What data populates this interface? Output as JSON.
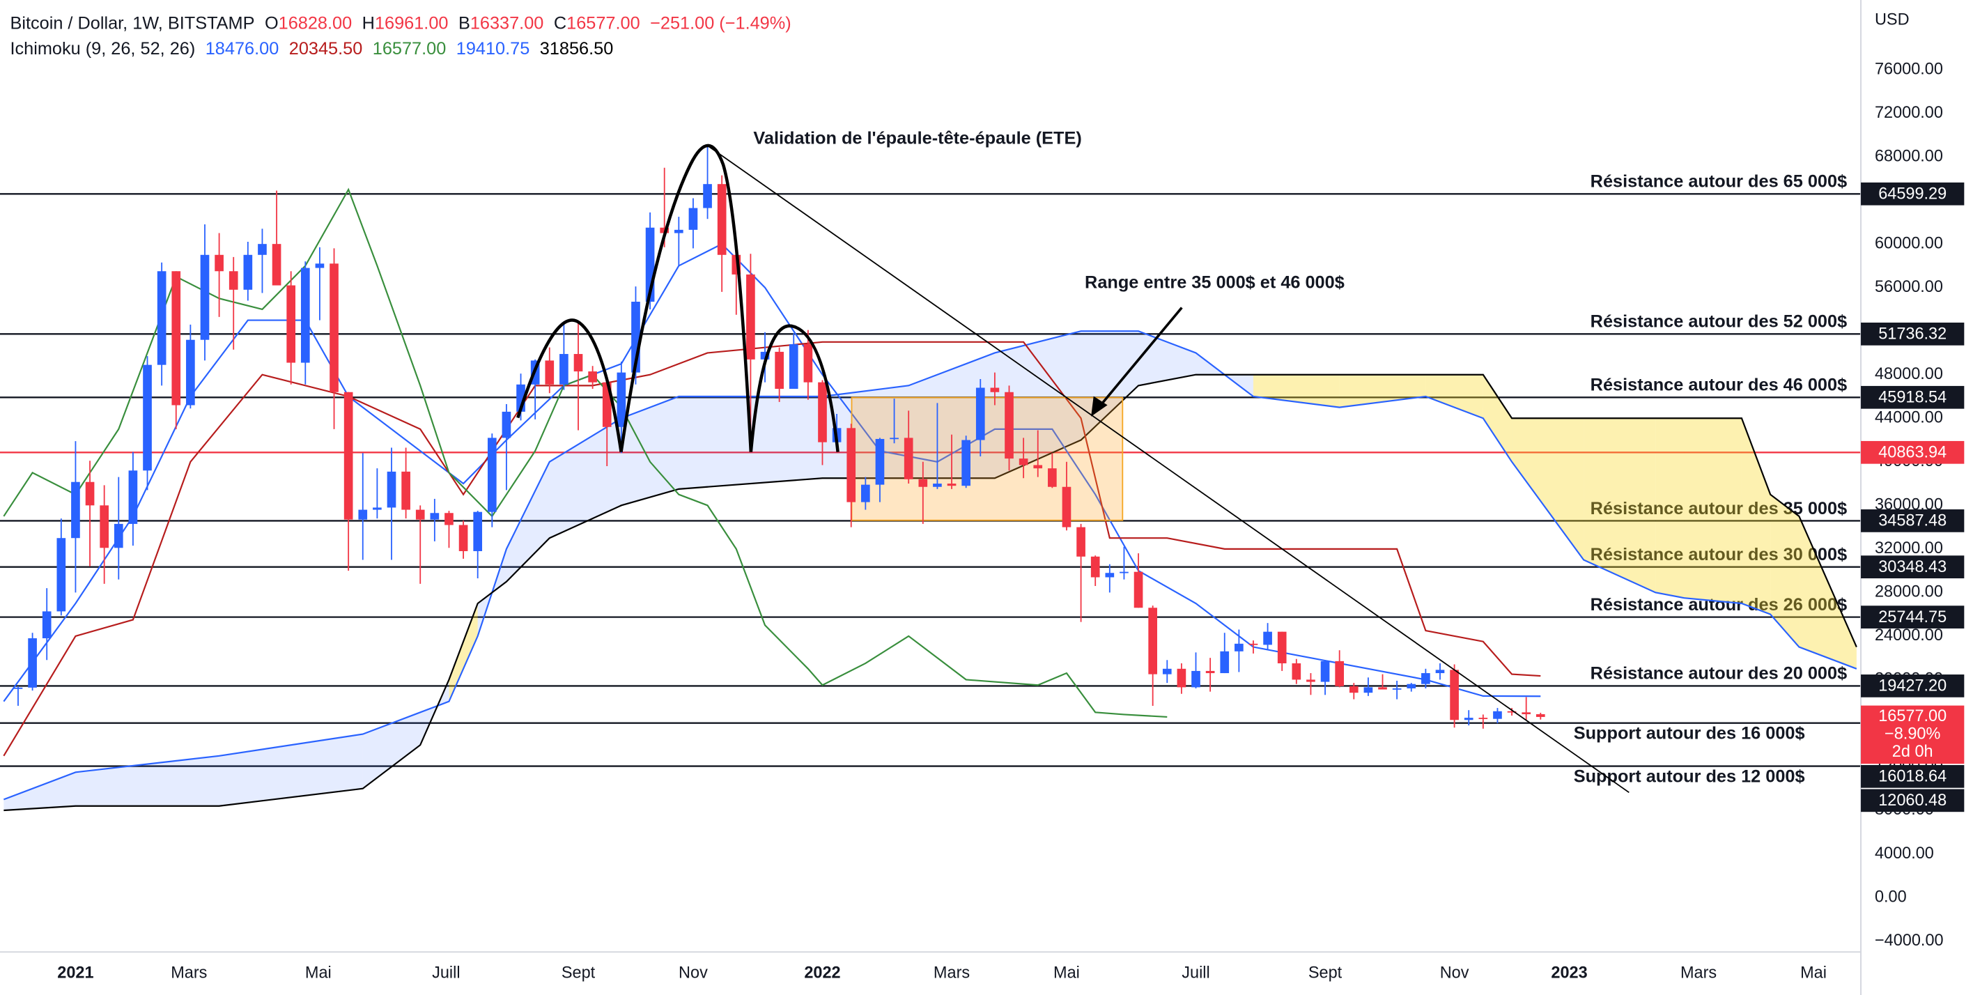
{
  "chart_data": {
    "type": "candlestick",
    "header": {
      "symbol": "Bitcoin / Dollar, 1W, BITSTAMP",
      "ohlc": [
        {
          "key": "O",
          "text": "16828.00"
        },
        {
          "key": "H",
          "text": "16961.00"
        },
        {
          "key": "B",
          "text": "16337.00"
        },
        {
          "key": "C",
          "text": "16577.00"
        }
      ],
      "change": "−251.00 (−1.49%)",
      "indicator": "Ichimoku (9, 26, 52, 26)",
      "indicator_values": [
        "18476.00",
        "20345.50",
        "16577.00",
        "19410.75",
        "31856.50"
      ]
    },
    "currency": "USD",
    "xlim": [
      -1.26,
      128.3
    ],
    "xticks": [
      {
        "value": 4,
        "label": "2021"
      },
      {
        "value": 11.9,
        "label": "Mars"
      },
      {
        "value": 20.9,
        "label": "Mai"
      },
      {
        "value": 29.8,
        "label": "Juill"
      },
      {
        "value": 39,
        "label": "Sept"
      },
      {
        "value": 47,
        "label": "Nov"
      },
      {
        "value": 56,
        "label": "2022"
      },
      {
        "value": 65,
        "label": "Mars"
      },
      {
        "value": 73,
        "label": "Mai"
      },
      {
        "value": 82,
        "label": "Juill"
      },
      {
        "value": 91,
        "label": "Sept"
      },
      {
        "value": 100,
        "label": "Nov"
      },
      {
        "value": 108,
        "label": "2023"
      },
      {
        "value": 117,
        "label": "Mars"
      },
      {
        "value": 125,
        "label": "Mai"
      }
    ],
    "ylim": [
      -5000,
      82400
    ],
    "yticks": [
      {
        "value": -4000,
        "label": "−4000.00"
      },
      {
        "value": 0,
        "label": "0.00"
      },
      {
        "value": 4000,
        "label": "4000.00"
      },
      {
        "value": 8000,
        "label": "8000.00"
      },
      {
        "value": 12000,
        "label": "12000.00"
      },
      {
        "value": 16000,
        "label": "16000.00"
      },
      {
        "value": 20000,
        "label": "20000.00"
      },
      {
        "value": 24000,
        "label": "24000.00"
      },
      {
        "value": 28000,
        "label": "28000.00"
      },
      {
        "value": 32000,
        "label": "32000.00"
      },
      {
        "value": 36000,
        "label": "36000.00"
      },
      {
        "value": 40000,
        "label": "40000.00"
      },
      {
        "value": 44000,
        "label": "44000.00"
      },
      {
        "value": 48000,
        "label": "48000.00"
      },
      {
        "value": 52000,
        "label": "52000.00"
      },
      {
        "value": 56000,
        "label": "56000.00"
      },
      {
        "value": 60000,
        "label": "60000.00"
      },
      {
        "value": 64000,
        "label": "64000.00"
      },
      {
        "value": 68000,
        "label": "68000.00"
      },
      {
        "value": 72000,
        "label": "72000.00"
      },
      {
        "value": 76000,
        "label": "76000.00"
      }
    ],
    "up_color": "#2962ff",
    "down_color": "#f23645",
    "candles": {
      "open": [
        19150,
        19270,
        23800,
        26270,
        33000,
        38150,
        36000,
        32100,
        34300,
        39200,
        48900,
        57500,
        45200,
        51200,
        59000,
        57500,
        55800,
        59000,
        60000,
        56200,
        49100,
        57800,
        58200,
        46400,
        34700,
        35600,
        35800,
        39100,
        35600,
        34700,
        35300,
        34200,
        31800,
        35400,
        42200,
        44600,
        47100,
        49300,
        47100,
        49900,
        48300,
        47300,
        43200,
        48200,
        54700,
        61500,
        61000,
        61300,
        63300,
        65500,
        59000,
        57200,
        49400,
        50100,
        46700,
        50800,
        47300,
        41800,
        43100,
        36300,
        37900,
        42100,
        42200,
        38400,
        37700,
        38000,
        37800,
        42000,
        46800,
        46400,
        40300,
        39700,
        39400,
        37700,
        34000,
        31300,
        29400,
        29800,
        29900,
        26600,
        20500,
        21000,
        19300,
        20800,
        20600,
        22600,
        23300,
        23200,
        24400,
        21500,
        20000,
        19800,
        21700,
        19400,
        18800,
        19300,
        19100,
        19200,
        19600,
        20600,
        20900,
        16300,
        16500,
        16400,
        17100,
        17000,
        16828
      ],
      "high": [
        19400,
        24300,
        28400,
        34800,
        41900,
        40100,
        37850,
        38600,
        40900,
        49700,
        58300,
        57500,
        52600,
        61800,
        61000,
        58800,
        60200,
        61400,
        64900,
        57500,
        58400,
        59700,
        59600,
        46400,
        40800,
        39400,
        41300,
        41300,
        36000,
        36600,
        35500,
        34600,
        35500,
        42600,
        45300,
        48100,
        49400,
        50500,
        52900,
        52800,
        48800,
        47600,
        49200,
        56100,
        62900,
        67000,
        62500,
        64200,
        69000,
        66300,
        59500,
        59100,
        51900,
        50500,
        51800,
        52100,
        47500,
        44400,
        43500,
        38600,
        42200,
        45800,
        44700,
        40000,
        45400,
        42500,
        42400,
        47600,
        48200,
        47000,
        42200,
        42900,
        40800,
        40000,
        34300,
        31400,
        30600,
        32200,
        31600,
        26800,
        21800,
        21500,
        22500,
        22000,
        24300,
        24600,
        23600,
        25200,
        24400,
        21900,
        20600,
        21800,
        22700,
        19700,
        20200,
        20500,
        19900,
        19700,
        21000,
        21500,
        21400,
        17200,
        16800,
        17400,
        17400,
        18400,
        16961
      ],
      "low": [
        17600,
        19000,
        21800,
        25900,
        28000,
        30400,
        28800,
        29200,
        32300,
        37400,
        47000,
        43000,
        44900,
        49300,
        53300,
        50300,
        54800,
        55500,
        59000,
        47100,
        47100,
        53000,
        43000,
        30000,
        31000,
        34800,
        31000,
        34800,
        28800,
        32700,
        32100,
        31100,
        29300,
        34000,
        37400,
        43800,
        43900,
        46300,
        46600,
        42900,
        46700,
        39600,
        40800,
        47100,
        54000,
        59700,
        58000,
        59600,
        62300,
        55600,
        53500,
        42000,
        47300,
        45500,
        46700,
        45700,
        39700,
        41300,
        34000,
        35600,
        36300,
        41700,
        38000,
        34300,
        37500,
        37500,
        37600,
        40500,
        45200,
        39200,
        38500,
        38600,
        37600,
        33700,
        25300,
        28600,
        28000,
        29200,
        26600,
        17600,
        19700,
        18700,
        19200,
        18900,
        20600,
        20700,
        22400,
        22700,
        20800,
        19600,
        18600,
        18600,
        19300,
        18200,
        18500,
        19100,
        18200,
        18900,
        19200,
        20000,
        15600,
        15800,
        15500,
        16000,
        16700,
        16300,
        16337
      ],
      "close": [
        19270,
        23800,
        26270,
        33000,
        38150,
        36000,
        32100,
        34300,
        39200,
        48900,
        57500,
        45200,
        51200,
        59000,
        57500,
        55800,
        59000,
        60000,
        56200,
        49100,
        57800,
        58200,
        46400,
        34700,
        35600,
        35800,
        39100,
        35600,
        34700,
        35300,
        34200,
        31800,
        35400,
        42200,
        44600,
        47100,
        49300,
        47100,
        49900,
        48300,
        47300,
        43200,
        48200,
        54700,
        61500,
        61000,
        61300,
        63300,
        65500,
        59000,
        57200,
        49400,
        50100,
        46700,
        50800,
        47300,
        41800,
        43100,
        36300,
        37900,
        42100,
        42200,
        38400,
        37700,
        38000,
        37800,
        42000,
        46800,
        46400,
        40300,
        39700,
        39400,
        37700,
        34000,
        31300,
        29400,
        29800,
        29900,
        26600,
        20500,
        21000,
        19300,
        20800,
        20600,
        22600,
        23300,
        23200,
        24400,
        21500,
        20000,
        19800,
        21700,
        19400,
        18800,
        19300,
        19100,
        19200,
        19600,
        20600,
        20900,
        16300,
        16500,
        16400,
        17100,
        17000,
        16828,
        16577
      ]
    },
    "lines": [
      {
        "color": "#2962ff",
        "x": [
          -1,
          4,
          8,
          12,
          16,
          20,
          23,
          26,
          31,
          34,
          38,
          42,
          46,
          49,
          52,
          56,
          60,
          64,
          68,
          72,
          75,
          78,
          82,
          86,
          90,
          94,
          98,
          102,
          106
        ],
        "values": [
          18000,
          27000,
          35000,
          46000,
          53000,
          53000,
          46000,
          43000,
          38000,
          42000,
          47000,
          49000,
          58000,
          60000,
          56000,
          48000,
          41000,
          40000,
          43000,
          43000,
          37000,
          30000,
          27000,
          23000,
          22000,
          21000,
          20000,
          18500,
          18476
        ]
      },
      {
        "color": "#b71c1c",
        "x": [
          -1,
          4,
          8,
          12,
          17,
          23,
          28,
          31,
          36,
          40,
          44,
          48,
          56,
          64,
          70,
          74,
          76,
          80,
          84,
          88,
          92,
          96,
          98,
          102,
          104,
          106
        ],
        "values": [
          13000,
          24000,
          25500,
          40000,
          48000,
          46000,
          43000,
          37000,
          47000,
          47000,
          48000,
          50000,
          51000,
          51000,
          51000,
          44000,
          33000,
          33000,
          32000,
          32000,
          32000,
          32000,
          24500,
          23500,
          20500,
          20345.5
        ]
      },
      {
        "color": "#388e3c",
        "x": [
          -1,
          1,
          4,
          7,
          11,
          14,
          17,
          20,
          23,
          25,
          28,
          30,
          33,
          36,
          38,
          40,
          42,
          44,
          46,
          48,
          50,
          52,
          55,
          56,
          59,
          62,
          64,
          66,
          68,
          71,
          73,
          75,
          77,
          80
        ],
        "values": [
          35000,
          39000,
          37000,
          43000,
          57000,
          55000,
          54000,
          58000,
          65000,
          58000,
          47000,
          39000,
          35000,
          41000,
          47000,
          48000,
          45000,
          40000,
          37000,
          36000,
          32000,
          25000,
          21000,
          19500,
          21500,
          24000,
          22000,
          20000,
          19800,
          19500,
          20600,
          17000,
          16800,
          16577
        ]
      }
    ],
    "cloud": {
      "x": [
        -1,
        4,
        14,
        24,
        28,
        30,
        32,
        34,
        37,
        42,
        46,
        56,
        62,
        68,
        74,
        78,
        82,
        86,
        92,
        98,
        102,
        104,
        109,
        114,
        116,
        120,
        122,
        124,
        128
      ],
      "span_a": {
        "color": "#2962ff",
        "values": [
          9000,
          11500,
          13000,
          15000,
          17000,
          18000,
          24000,
          32000,
          40000,
          44000,
          46000,
          46000,
          47000,
          50000,
          52000,
          52000,
          50000,
          46000,
          45000,
          46000,
          44000,
          40000,
          31000,
          28000,
          27500,
          27000,
          26000,
          23000,
          21000
        ]
      },
      "span_b": {
        "color": "#000000",
        "values": [
          8000,
          8400,
          8400,
          10000,
          14000,
          20000,
          27000,
          29000,
          33000,
          36000,
          37500,
          38500,
          38500,
          38500,
          42000,
          47000,
          48000,
          48000,
          48000,
          48000,
          48000,
          44000,
          44000,
          44000,
          44000,
          44000,
          37000,
          35000,
          23000
        ]
      },
      "up_color": "#2962ff",
      "down_color": "#f9d71c"
    },
    "levels": {
      "values": [
        64599.29,
        51736.32,
        45918.54,
        40863.94,
        34587.48,
        30348.43,
        25744.75,
        19427.2,
        16018.64,
        12060.48
      ],
      "value_labels": [
        "64599.29",
        "51736.32",
        "45918.54",
        "40863.94",
        "34587.48",
        "30348.43",
        "25744.75",
        "19427.20",
        "16018.64",
        "12060.48"
      ],
      "colors": [
        "#131722",
        "#131722",
        "#131722",
        "#f23645",
        "#131722",
        "#131722",
        "#131722",
        "#131722",
        "#131722",
        "#131722"
      ],
      "notes": [
        "Résistance autour des 65 000$",
        "Résistance autour des 52 000$",
        "Résistance autour des 46 000$",
        null,
        "Résistance autour des 35 000$",
        "Résistance autour des 30 000$",
        "Résistance autour des 26 000$",
        "Résistance autour des 20 000$",
        "Support autour des 16 000$",
        "Support autour des 12 000$"
      ]
    },
    "price_tag": {
      "value": 16577,
      "value_label": "16577.00",
      "change": "−8.90%",
      "countdown": "2d 0h",
      "color": "#f23645"
    },
    "annotations": [
      "Validation de l'épaule-tête-épaule (ETE)",
      "Range entre 35 000$ et 46 000$"
    ]
  }
}
